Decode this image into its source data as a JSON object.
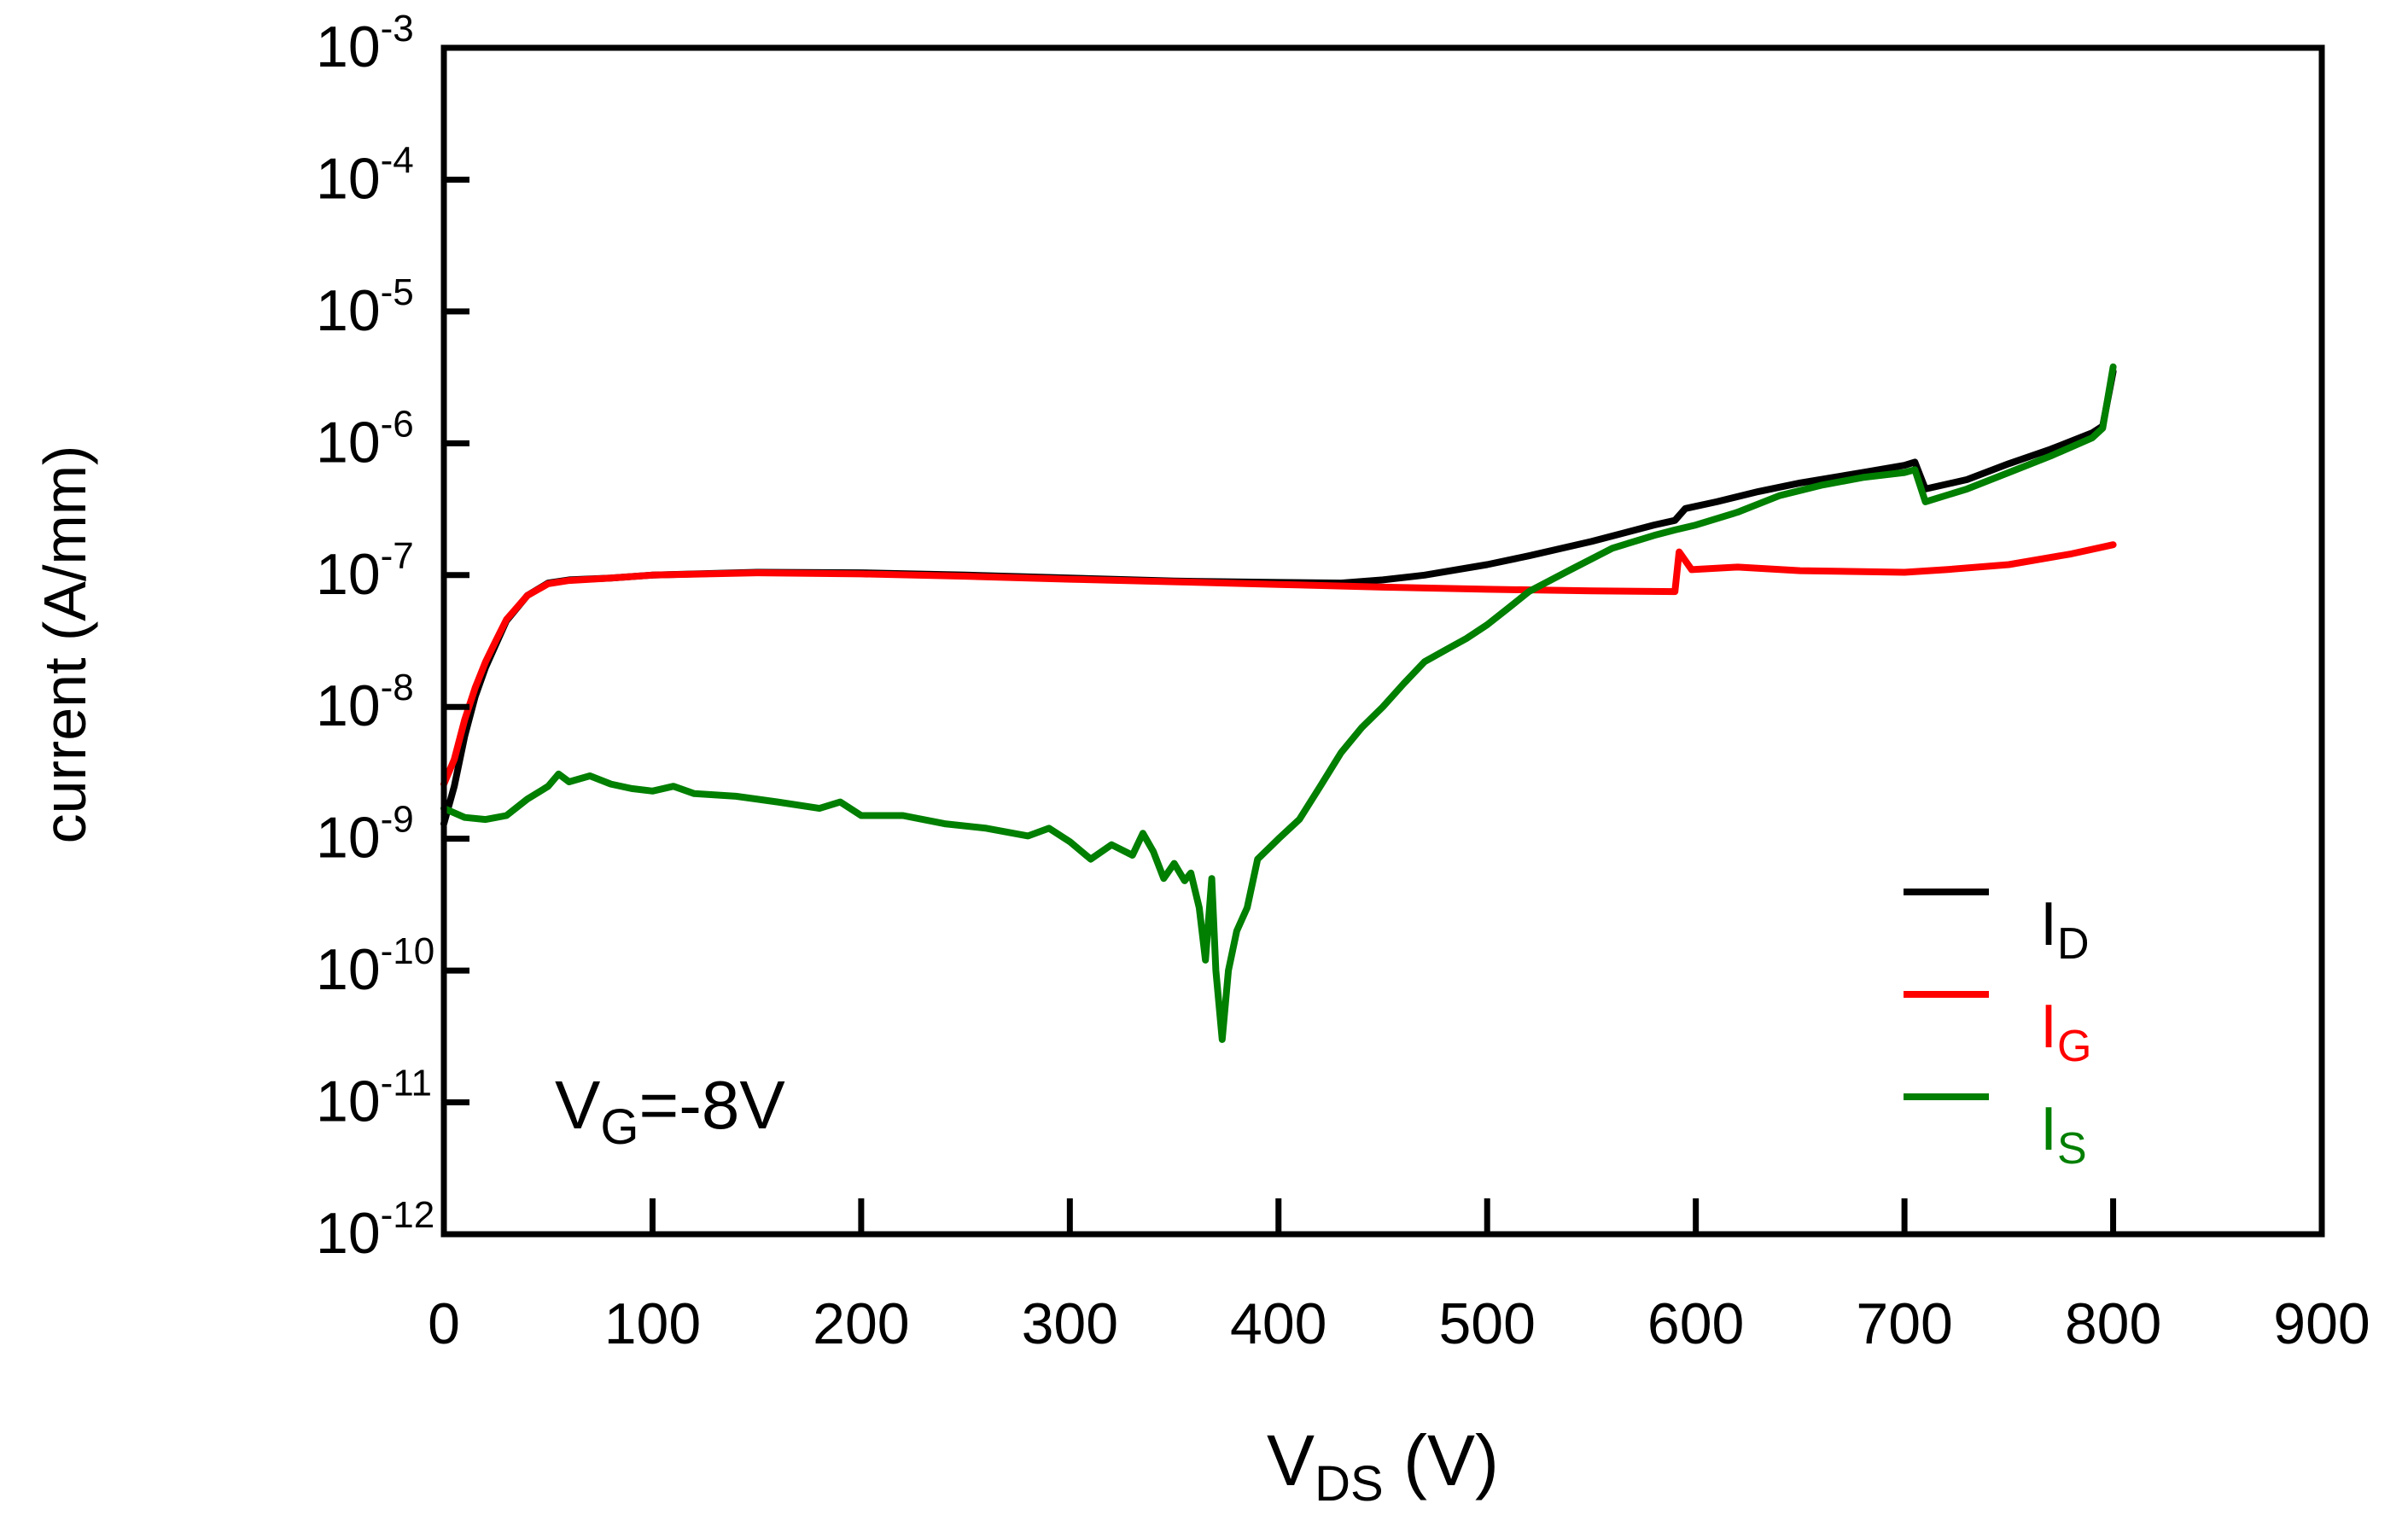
{
  "chart_data": {
    "type": "line",
    "title": "",
    "xlabel": {
      "main": "V",
      "sub": "DS",
      "rest": " (V)"
    },
    "ylabel": "current (A/mm)",
    "xlim": [
      0,
      900
    ],
    "ylim_log10": [
      -12,
      -3
    ],
    "yscale": "log",
    "x_ticks": [
      0,
      100,
      200,
      300,
      400,
      500,
      600,
      700,
      800,
      900
    ],
    "x_tick_labels": [
      "0",
      "100",
      "200",
      "300",
      "400",
      "500",
      "600",
      "700",
      "800",
      "900"
    ],
    "y_ticks": [
      {
        "base": "10",
        "exp": "-3",
        "log": -3
      },
      {
        "base": "10",
        "exp": "-4",
        "log": -4
      },
      {
        "base": "10",
        "exp": "-5",
        "log": -5
      },
      {
        "base": "10",
        "exp": "-6",
        "log": -6
      },
      {
        "base": "10",
        "exp": "-7",
        "log": -7
      },
      {
        "base": "10",
        "exp": "-8",
        "log": -8
      },
      {
        "base": "10",
        "exp": "-9",
        "log": -9
      },
      {
        "base": "10",
        "exp": "-10",
        "log": -10
      },
      {
        "base": "10",
        "exp": "-11",
        "log": -11
      },
      {
        "base": "10",
        "exp": "-12",
        "log": -12
      }
    ],
    "annotation": {
      "main": "V",
      "sub": "G",
      "rest": "=-8V"
    },
    "legend_position": "bottom-right",
    "series": [
      {
        "name": "I_D",
        "label_main": "I",
        "label_sub": "D",
        "color": "#000000",
        "points": [
          [
            0,
            1.3e-09
          ],
          [
            5,
            2.5e-09
          ],
          [
            10,
            6e-09
          ],
          [
            15,
            1.2e-08
          ],
          [
            20,
            2e-08
          ],
          [
            25,
            3e-08
          ],
          [
            30,
            4.5e-08
          ],
          [
            40,
            7e-08
          ],
          [
            50,
            8.7e-08
          ],
          [
            60,
            9.2e-08
          ],
          [
            80,
            9.5e-08
          ],
          [
            100,
            1e-07
          ],
          [
            150,
            1.05e-07
          ],
          [
            200,
            1.04e-07
          ],
          [
            250,
            1e-07
          ],
          [
            300,
            9.5e-08
          ],
          [
            350,
            9e-08
          ],
          [
            400,
            8.8e-08
          ],
          [
            430,
            8.7e-08
          ],
          [
            450,
            9.2e-08
          ],
          [
            470,
            1e-07
          ],
          [
            500,
            1.2e-07
          ],
          [
            520,
            1.4e-07
          ],
          [
            550,
            1.8e-07
          ],
          [
            580,
            2.4e-07
          ],
          [
            590,
            2.6e-07
          ],
          [
            595,
            3.2e-07
          ],
          [
            610,
            3.6e-07
          ],
          [
            630,
            4.3e-07
          ],
          [
            650,
            5e-07
          ],
          [
            680,
            6e-07
          ],
          [
            700,
            6.8e-07
          ],
          [
            705,
            7.2e-07
          ],
          [
            710,
            4.5e-07
          ],
          [
            730,
            5.3e-07
          ],
          [
            750,
            7e-07
          ],
          [
            770,
            9e-07
          ],
          [
            790,
            1.2e-06
          ],
          [
            795,
            1.35e-06
          ],
          [
            800,
            3.5e-06
          ]
        ]
      },
      {
        "name": "I_G",
        "label_main": "I",
        "label_sub": "G",
        "color": "#ff0000",
        "points": [
          [
            0,
            2.6e-09
          ],
          [
            5,
            4e-09
          ],
          [
            10,
            8e-09
          ],
          [
            15,
            1.4e-08
          ],
          [
            20,
            2.2e-08
          ],
          [
            25,
            3.2e-08
          ],
          [
            30,
            4.6e-08
          ],
          [
            40,
            7e-08
          ],
          [
            50,
            8.6e-08
          ],
          [
            60,
            9.1e-08
          ],
          [
            80,
            9.5e-08
          ],
          [
            100,
            1e-07
          ],
          [
            150,
            1.04e-07
          ],
          [
            200,
            1.02e-07
          ],
          [
            250,
            9.8e-08
          ],
          [
            300,
            9.3e-08
          ],
          [
            350,
            8.9e-08
          ],
          [
            400,
            8.5e-08
          ],
          [
            450,
            8.1e-08
          ],
          [
            500,
            7.8e-08
          ],
          [
            550,
            7.6e-08
          ],
          [
            590,
            7.5e-08
          ],
          [
            592,
            1.5e-07
          ],
          [
            598,
            1.1e-07
          ],
          [
            620,
            1.15e-07
          ],
          [
            650,
            1.08e-07
          ],
          [
            700,
            1.05e-07
          ],
          [
            720,
            1.1e-07
          ],
          [
            750,
            1.2e-07
          ],
          [
            780,
            1.45e-07
          ],
          [
            800,
            1.7e-07
          ]
        ]
      },
      {
        "name": "I_S",
        "label_main": "I",
        "label_sub": "S",
        "color": "#007f00",
        "points": [
          [
            0,
            1.7e-09
          ],
          [
            10,
            1.45e-09
          ],
          [
            20,
            1.4e-09
          ],
          [
            30,
            1.5e-09
          ],
          [
            40,
            2e-09
          ],
          [
            50,
            2.5e-09
          ],
          [
            55,
            3.1e-09
          ],
          [
            60,
            2.7e-09
          ],
          [
            70,
            3e-09
          ],
          [
            80,
            2.6e-09
          ],
          [
            90,
            2.4e-09
          ],
          [
            100,
            2.3e-09
          ],
          [
            110,
            2.5e-09
          ],
          [
            120,
            2.2e-09
          ],
          [
            140,
            2.1e-09
          ],
          [
            160,
            1.9e-09
          ],
          [
            180,
            1.7e-09
          ],
          [
            190,
            1.9e-09
          ],
          [
            200,
            1.5e-09
          ],
          [
            220,
            1.5e-09
          ],
          [
            240,
            1.3e-09
          ],
          [
            260,
            1.2e-09
          ],
          [
            280,
            1.05e-09
          ],
          [
            290,
            1.2e-09
          ],
          [
            300,
            9.5e-10
          ],
          [
            310,
            7e-10
          ],
          [
            320,
            9e-10
          ],
          [
            330,
            7.5e-10
          ],
          [
            335,
            1.1e-09
          ],
          [
            340,
            8e-10
          ],
          [
            345,
            5e-10
          ],
          [
            350,
            6.5e-10
          ],
          [
            355,
            4.8e-10
          ],
          [
            358,
            5.5e-10
          ],
          [
            362,
            3e-10
          ],
          [
            365,
            1.2e-10
          ],
          [
            368,
            5e-10
          ],
          [
            370,
            1e-10
          ],
          [
            373,
            3e-11
          ],
          [
            376,
            1e-10
          ],
          [
            380,
            2e-10
          ],
          [
            385,
            3e-10
          ],
          [
            390,
            7e-10
          ],
          [
            400,
            1e-09
          ],
          [
            410,
            1.4e-09
          ],
          [
            420,
            2.5e-09
          ],
          [
            430,
            4.5e-09
          ],
          [
            440,
            7e-09
          ],
          [
            450,
            1e-08
          ],
          [
            460,
            1.5e-08
          ],
          [
            470,
            2.2e-08
          ],
          [
            480,
            2.7e-08
          ],
          [
            490,
            3.3e-08
          ],
          [
            500,
            4.2e-08
          ],
          [
            510,
            5.6e-08
          ],
          [
            520,
            7.5e-08
          ],
          [
            540,
            1.1e-07
          ],
          [
            560,
            1.6e-07
          ],
          [
            580,
            2e-07
          ],
          [
            590,
            2.2e-07
          ],
          [
            600,
            2.4e-07
          ],
          [
            620,
            3e-07
          ],
          [
            640,
            4e-07
          ],
          [
            660,
            4.8e-07
          ],
          [
            680,
            5.5e-07
          ],
          [
            700,
            6e-07
          ],
          [
            705,
            6.3e-07
          ],
          [
            710,
            3.6e-07
          ],
          [
            730,
            4.5e-07
          ],
          [
            750,
            6e-07
          ],
          [
            770,
            8e-07
          ],
          [
            790,
            1.1e-06
          ],
          [
            795,
            1.3e-06
          ],
          [
            800,
            3.8e-06
          ]
        ]
      }
    ]
  }
}
